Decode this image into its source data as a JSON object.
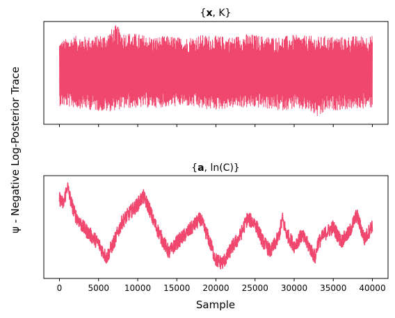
{
  "figure": {
    "ylabel": "ψ - Negative Log-Posterior Trace",
    "xlabel": "Sample"
  },
  "chart_data": [
    {
      "type": "line",
      "title": "{x, K}",
      "title_parts": [
        "{",
        "x",
        ", K}"
      ],
      "color": "#f0476f",
      "xlim": [
        -2000,
        42000
      ],
      "x_tick_labels": [],
      "y_ticks_shown": false,
      "x_range": [
        0,
        40000
      ],
      "series": [
        {
          "x": [
            0,
            2000,
            4000,
            6000,
            7300,
            8000,
            10000,
            12000,
            14000,
            16000,
            18000,
            20000,
            22000,
            24000,
            26000,
            28000,
            30000,
            32000,
            33300,
            34000,
            36000,
            38000,
            40000
          ],
          "center": [
            0.5,
            0.5,
            0.51,
            0.5,
            0.5,
            0.5,
            0.5,
            0.5,
            0.5,
            0.5,
            0.5,
            0.5,
            0.5,
            0.5,
            0.5,
            0.5,
            0.5,
            0.5,
            0.5,
            0.5,
            0.5,
            0.5,
            0.5
          ],
          "upper": [
            0.81,
            0.86,
            0.85,
            0.88,
            0.97,
            0.9,
            0.88,
            0.85,
            0.86,
            0.84,
            0.87,
            0.86,
            0.85,
            0.88,
            0.86,
            0.85,
            0.87,
            0.86,
            0.85,
            0.86,
            0.85,
            0.86,
            0.86
          ],
          "lower": [
            0.18,
            0.16,
            0.14,
            0.12,
            0.14,
            0.15,
            0.16,
            0.16,
            0.17,
            0.18,
            0.15,
            0.14,
            0.16,
            0.16,
            0.16,
            0.13,
            0.15,
            0.12,
            0.05,
            0.13,
            0.14,
            0.15,
            0.16
          ]
        }
      ]
    },
    {
      "type": "line",
      "title": "{a, ln(C)}",
      "title_parts": [
        "{",
        "a",
        ", ln(C)}"
      ],
      "color": "#f0476f",
      "xlim": [
        -2000,
        42000
      ],
      "x_ticks": [
        0,
        5000,
        10000,
        15000,
        20000,
        25000,
        30000,
        35000,
        40000
      ],
      "x_tick_labels": [
        "0",
        "5000",
        "10000",
        "15000",
        "20000",
        "25000",
        "30000",
        "35000",
        "40000"
      ],
      "y_ticks_shown": false,
      "series": [
        {
          "x": [
            0,
            500,
            1000,
            1500,
            2000,
            3000,
            4000,
            5000,
            6000,
            7000,
            8000,
            9000,
            10000,
            10700,
            11500,
            12000,
            13000,
            14000,
            15000,
            16000,
            17000,
            18000,
            19000,
            20000,
            20800,
            21500,
            22000,
            23000,
            24000,
            25000,
            26000,
            27000,
            28000,
            28500,
            29000,
            30000,
            31000,
            32000,
            32700,
            33000,
            34000,
            35000,
            36000,
            37000,
            38000,
            39000,
            40000
          ],
          "y": [
            0.78,
            0.72,
            0.9,
            0.74,
            0.62,
            0.5,
            0.42,
            0.34,
            0.2,
            0.36,
            0.55,
            0.64,
            0.72,
            0.8,
            0.68,
            0.56,
            0.4,
            0.25,
            0.35,
            0.42,
            0.5,
            0.58,
            0.4,
            0.18,
            0.15,
            0.22,
            0.3,
            0.4,
            0.58,
            0.54,
            0.36,
            0.26,
            0.4,
            0.58,
            0.44,
            0.32,
            0.42,
            0.3,
            0.2,
            0.34,
            0.44,
            0.5,
            0.36,
            0.44,
            0.62,
            0.38,
            0.52
          ]
        }
      ]
    }
  ]
}
